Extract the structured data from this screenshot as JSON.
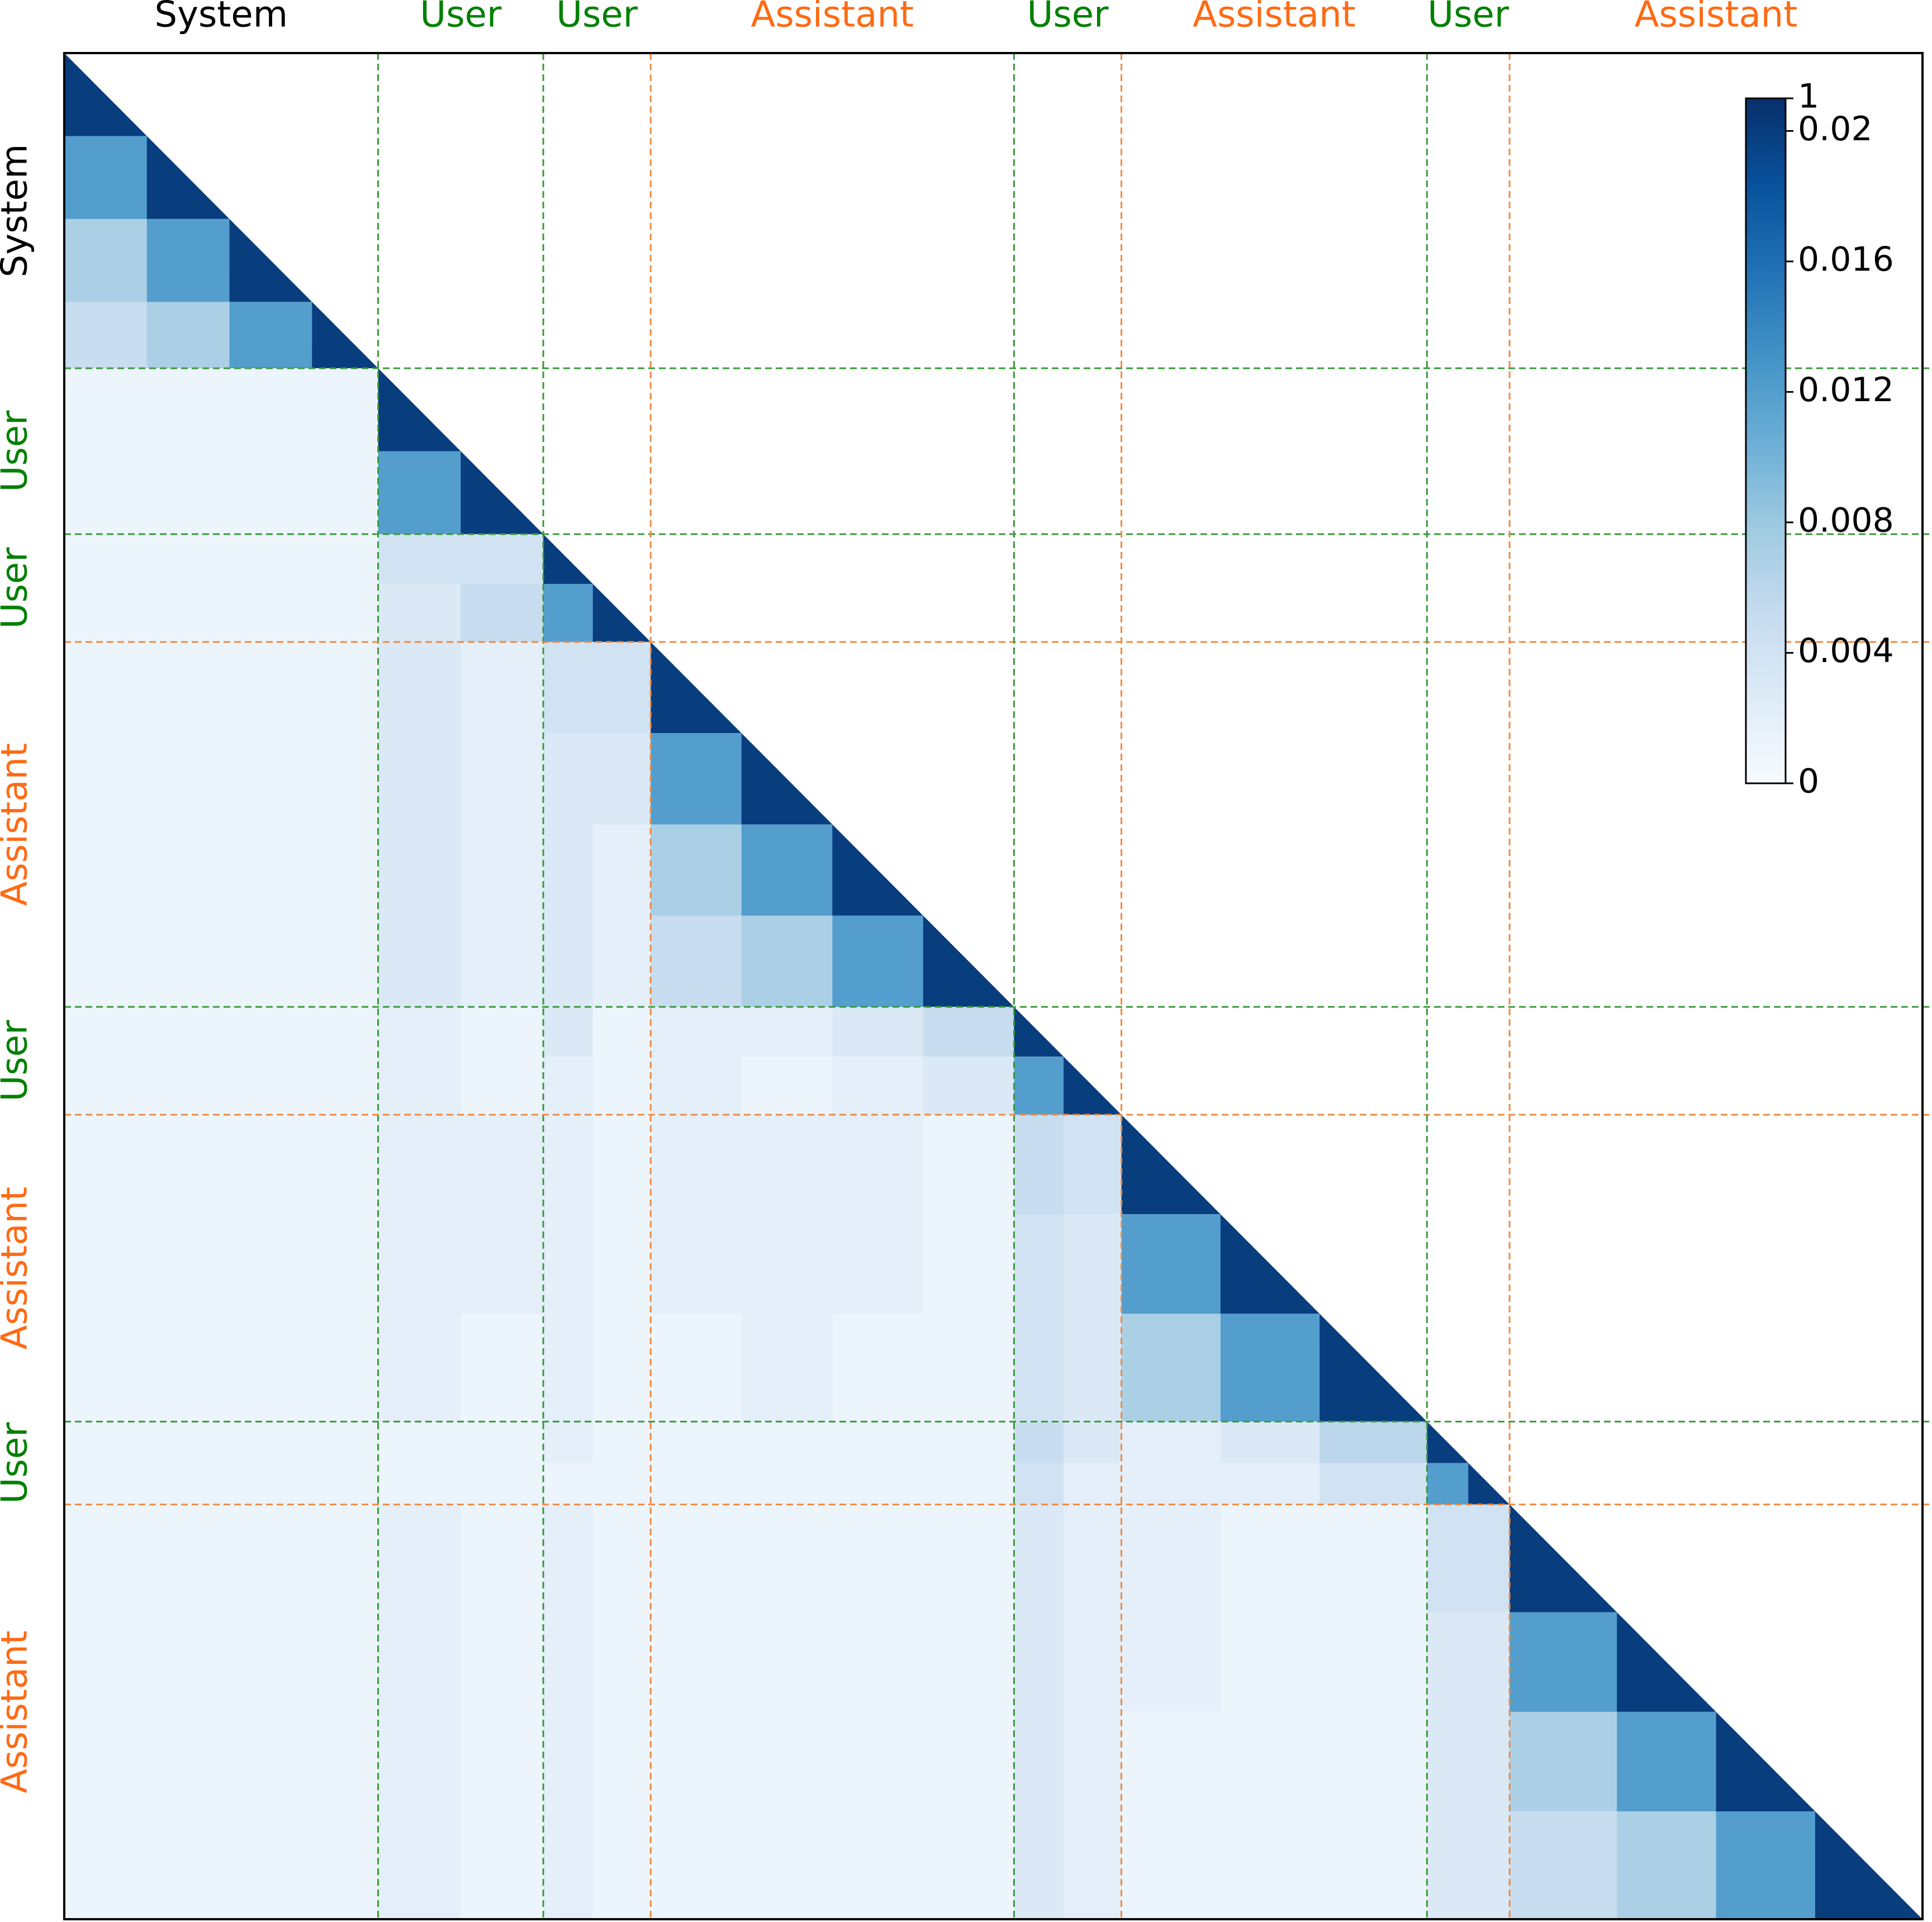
{
  "chart_data": {
    "type": "heatmap",
    "xlim": [
      0,
      225
    ],
    "ylim": [
      0,
      225
    ],
    "segments": [
      {
        "label": "System",
        "start": 0,
        "end": 38,
        "color": "#000000"
      },
      {
        "label": "User",
        "start": 38,
        "end": 58,
        "color": "#008000"
      },
      {
        "label": "User",
        "start": 58,
        "end": 71,
        "color": "#008000"
      },
      {
        "label": "Assistant",
        "start": 71,
        "end": 115,
        "color": "#ff6a13"
      },
      {
        "label": "User",
        "start": 115,
        "end": 128,
        "color": "#008000"
      },
      {
        "label": "Assistant",
        "start": 128,
        "end": 165,
        "color": "#ff6a13"
      },
      {
        "label": "User",
        "start": 165,
        "end": 175,
        "color": "#008000"
      },
      {
        "label": "Assistant",
        "start": 175,
        "end": 225,
        "color": "#ff6a13"
      }
    ],
    "boundary_colors": {
      "#008000": "#3a9a3a",
      "#ff6a13": "#f08a40"
    },
    "bins": [
      0,
      10,
      20,
      30,
      38,
      48,
      58,
      64,
      71,
      82,
      93,
      104,
      115,
      121,
      128,
      140,
      152,
      165,
      170,
      175,
      188,
      200,
      212,
      225
    ],
    "matrix": [
      [
        0.02
      ],
      [
        0.012,
        0.02
      ],
      [
        0.007,
        0.012,
        0.02
      ],
      [
        0.005,
        0.007,
        0.012,
        0.02
      ],
      [
        0.001,
        0.001,
        0.001,
        0.001,
        0.02
      ],
      [
        0.001,
        0.001,
        0.001,
        0.001,
        0.012,
        0.02
      ],
      [
        0.001,
        0.001,
        0.001,
        0.001,
        0.004,
        0.004,
        0.02
      ],
      [
        0.001,
        0.001,
        0.001,
        0.001,
        0.003,
        0.005,
        0.012,
        0.02
      ],
      [
        0.001,
        0.001,
        0.001,
        0.001,
        0.003,
        0.002,
        0.004,
        0.004,
        0.02
      ],
      [
        0.001,
        0.001,
        0.001,
        0.001,
        0.003,
        0.002,
        0.003,
        0.003,
        0.012,
        0.02
      ],
      [
        0.001,
        0.001,
        0.001,
        0.001,
        0.003,
        0.002,
        0.003,
        0.002,
        0.007,
        0.012,
        0.02
      ],
      [
        0.001,
        0.001,
        0.001,
        0.001,
        0.003,
        0.002,
        0.003,
        0.002,
        0.005,
        0.007,
        0.012,
        0.02
      ],
      [
        0.001,
        0.001,
        0.001,
        0.001,
        0.002,
        0.001,
        0.003,
        0.001,
        0.002,
        0.002,
        0.003,
        0.005,
        0.02
      ],
      [
        0.001,
        0.001,
        0.001,
        0.001,
        0.002,
        0.001,
        0.002,
        0.001,
        0.002,
        0.001,
        0.002,
        0.003,
        0.012,
        0.02
      ],
      [
        0.001,
        0.001,
        0.001,
        0.001,
        0.002,
        0.002,
        0.002,
        0.001,
        0.002,
        0.002,
        0.002,
        0.001,
        0.005,
        0.004,
        0.02
      ],
      [
        0.001,
        0.001,
        0.001,
        0.001,
        0.002,
        0.002,
        0.002,
        0.001,
        0.002,
        0.002,
        0.002,
        0.001,
        0.004,
        0.003,
        0.012,
        0.02
      ],
      [
        0.001,
        0.001,
        0.001,
        0.001,
        0.002,
        0.001,
        0.002,
        0.001,
        0.001,
        0.002,
        0.001,
        0.001,
        0.004,
        0.003,
        0.007,
        0.012,
        0.02
      ],
      [
        0.001,
        0.001,
        0.001,
        0.001,
        0.001,
        0.001,
        0.002,
        0.001,
        0.001,
        0.001,
        0.001,
        0.001,
        0.005,
        0.003,
        0.002,
        0.003,
        0.006,
        0.02
      ],
      [
        0.001,
        0.001,
        0.001,
        0.001,
        0.001,
        0.001,
        0.001,
        0.001,
        0.001,
        0.001,
        0.001,
        0.001,
        0.004,
        0.002,
        0.002,
        0.002,
        0.004,
        0.012,
        0.02
      ],
      [
        0.001,
        0.001,
        0.001,
        0.001,
        0.002,
        0.001,
        0.002,
        0.001,
        0.001,
        0.001,
        0.001,
        0.001,
        0.003,
        0.002,
        0.002,
        0.001,
        0.001,
        0.004,
        0.004,
        0.02
      ],
      [
        0.001,
        0.001,
        0.001,
        0.001,
        0.002,
        0.001,
        0.002,
        0.001,
        0.001,
        0.001,
        0.001,
        0.001,
        0.003,
        0.002,
        0.002,
        0.001,
        0.001,
        0.003,
        0.003,
        0.012,
        0.02
      ],
      [
        0.001,
        0.001,
        0.001,
        0.001,
        0.002,
        0.001,
        0.002,
        0.001,
        0.001,
        0.001,
        0.001,
        0.001,
        0.003,
        0.002,
        0.001,
        0.001,
        0.001,
        0.003,
        0.003,
        0.007,
        0.012,
        0.02
      ],
      [
        0.001,
        0.001,
        0.001,
        0.001,
        0.002,
        0.001,
        0.002,
        0.001,
        0.001,
        0.001,
        0.001,
        0.001,
        0.003,
        0.002,
        0.001,
        0.001,
        0.001,
        0.003,
        0.003,
        0.005,
        0.007,
        0.012,
        0.02
      ]
    ],
    "colormap": [
      "#f7fbff",
      "#deebf7",
      "#c6dbef",
      "#9ecae1",
      "#6baed6",
      "#4292c6",
      "#2171b5",
      "#08519c",
      "#08306b"
    ],
    "clim": [
      0,
      0.021
    ],
    "colorbar_ticks": [
      0,
      0.004,
      0.008,
      0.012,
      0.016,
      0.02
    ],
    "colorbar_max_label": "1"
  }
}
